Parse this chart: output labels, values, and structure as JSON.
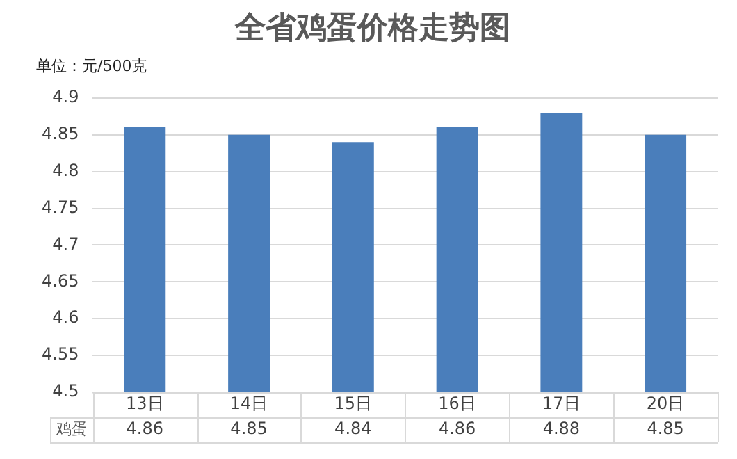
{
  "chart_data": {
    "type": "bar",
    "title": "全省鸡蛋价格走势图",
    "annotations": [
      "单位：元/500克"
    ],
    "categories": [
      "13日",
      "14日",
      "15日",
      "16日",
      "17日",
      "20日"
    ],
    "series": [
      {
        "name": "鸡蛋",
        "color": "#4a7ebb",
        "values": [
          4.86,
          4.85,
          4.84,
          4.86,
          4.88,
          4.85
        ]
      }
    ],
    "ylim": [
      4.5,
      4.9
    ],
    "yticks": [
      4.5,
      4.55,
      4.6,
      4.65,
      4.7,
      4.75,
      4.8,
      4.85,
      4.9
    ],
    "grid": "y",
    "legend": false,
    "data_labels": true
  }
}
